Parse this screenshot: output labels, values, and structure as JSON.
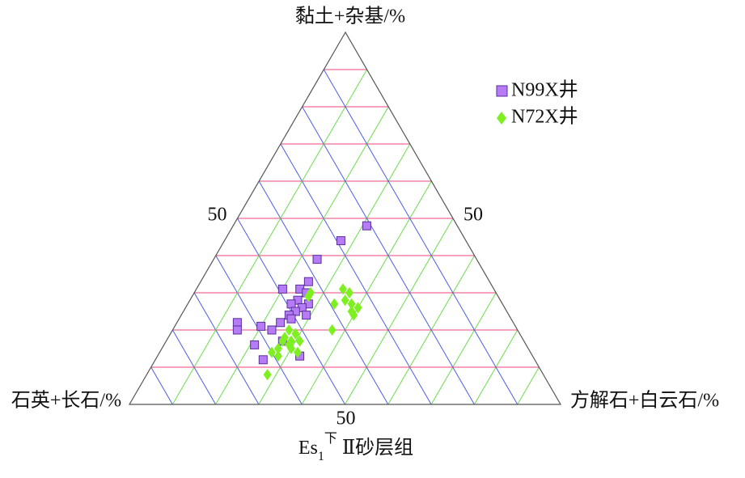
{
  "chart_data": {
    "type": "ternary",
    "axes": {
      "top": "黏土+杂基/%",
      "left": "石英+长石/%",
      "right": "方解石+白云石/%"
    },
    "title": {
      "main": "Es",
      "sub": "1",
      "sup": "下",
      "rest": "Ⅱ砂层组"
    },
    "ticks": {
      "top": [
        50
      ],
      "right": [
        50
      ],
      "left": [
        50
      ]
    },
    "grid_step": 10,
    "grid_colors": {
      "top": "#e8467c",
      "left": "#4c5ee6",
      "right": "#6cdc4c"
    },
    "series": [
      {
        "name": "N99X井",
        "color": "#b67cf6",
        "marker": "square",
        "top": [
          48,
          44,
          39,
          33,
          31,
          31,
          30,
          28,
          27,
          27,
          26,
          25,
          24,
          24,
          23,
          22,
          22,
          20,
          21,
          20,
          16,
          13,
          12,
          17
        ],
        "right": [
          31,
          27,
          24,
          25,
          20,
          24,
          26,
          25,
          24,
          28,
          27,
          26,
          25,
          29,
          26,
          24,
          14,
          15,
          20,
          23,
          21,
          33,
          25,
          27
        ],
        "left": [
          21,
          29,
          37,
          42,
          49,
          45,
          44,
          47,
          49,
          45,
          47,
          49,
          51,
          47,
          51,
          54,
          64,
          65,
          59,
          57,
          63,
          54,
          63,
          56
        ]
      },
      {
        "name": "N72X井",
        "color": "#7ef020",
        "marker": "diamond",
        "top": [
          31,
          30,
          30,
          29,
          28,
          27,
          27,
          26,
          25,
          24,
          20,
          20,
          19,
          18,
          17,
          17,
          17,
          16,
          15,
          15,
          14,
          14,
          13,
          8
        ],
        "right": [
          34,
          36,
          27,
          27,
          36,
          38,
          34,
          40,
          39,
          40,
          37,
          27,
          29,
          27,
          29,
          31,
          27,
          29,
          27,
          30,
          32,
          26,
          28,
          28
        ],
        "left": [
          35,
          34,
          43,
          44,
          36,
          35,
          39,
          34,
          36,
          36,
          43,
          53,
          52,
          55,
          54,
          52,
          56,
          55,
          58,
          55,
          54,
          60,
          59,
          64
        ]
      }
    ]
  }
}
